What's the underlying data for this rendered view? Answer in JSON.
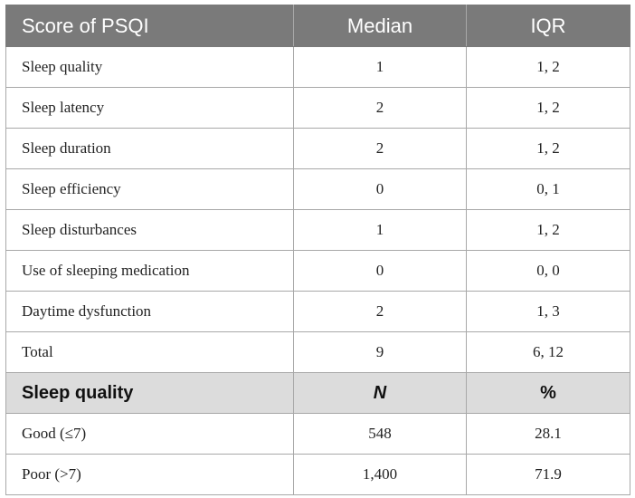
{
  "table": {
    "header": [
      "Score of PSQI",
      "Median",
      "IQR"
    ],
    "rows": [
      {
        "label": "Sleep quality",
        "median": "1",
        "iqr": "1, 2"
      },
      {
        "label": "Sleep latency",
        "median": "2",
        "iqr": "1, 2"
      },
      {
        "label": "Sleep duration",
        "median": "2",
        "iqr": "1, 2"
      },
      {
        "label": "Sleep efficiency",
        "median": "0",
        "iqr": "0, 1"
      },
      {
        "label": "Sleep disturbances",
        "median": "1",
        "iqr": "1, 2"
      },
      {
        "label": "Use of sleeping medication",
        "median": "0",
        "iqr": "0, 0"
      },
      {
        "label": "Daytime dysfunction",
        "median": "2",
        "iqr": "1, 3"
      },
      {
        "label": "Total",
        "median": "9",
        "iqr": "6, 12"
      }
    ],
    "subheader": [
      "Sleep quality",
      "N",
      "%"
    ],
    "quality_rows": [
      {
        "label": "Good (≤7)",
        "n": "548",
        "percent": "28.1"
      },
      {
        "label": "Poor (>7)",
        "n": "1,400",
        "percent": "71.9"
      }
    ]
  }
}
